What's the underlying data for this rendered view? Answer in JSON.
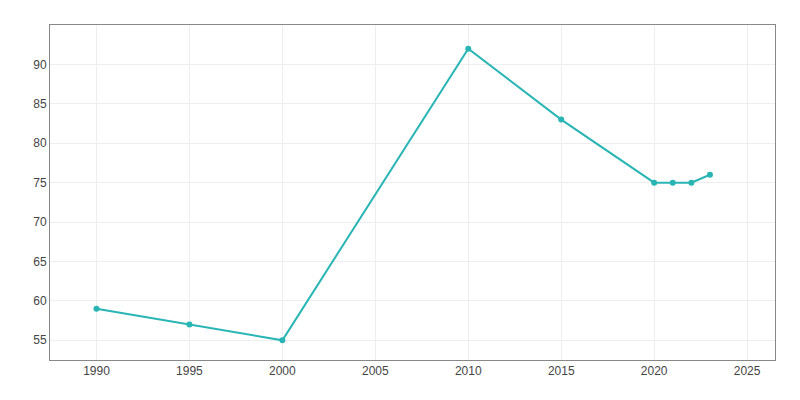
{
  "chart_data": {
    "type": "line",
    "x": [
      1990,
      1995,
      2000,
      2010,
      2015,
      2020,
      2021,
      2022,
      2023
    ],
    "values": [
      59,
      57,
      55,
      92,
      83,
      75,
      75,
      75,
      76
    ],
    "color": "#2ab5b5",
    "marker": "circle",
    "xlim": [
      1987.5,
      2026.5
    ],
    "ylim": [
      52.5,
      95
    ],
    "xticks": [
      1990,
      1995,
      2000,
      2005,
      2010,
      2015,
      2020,
      2025
    ],
    "yticks": [
      55,
      60,
      65,
      70,
      75,
      80,
      85,
      90
    ],
    "grid": true
  }
}
